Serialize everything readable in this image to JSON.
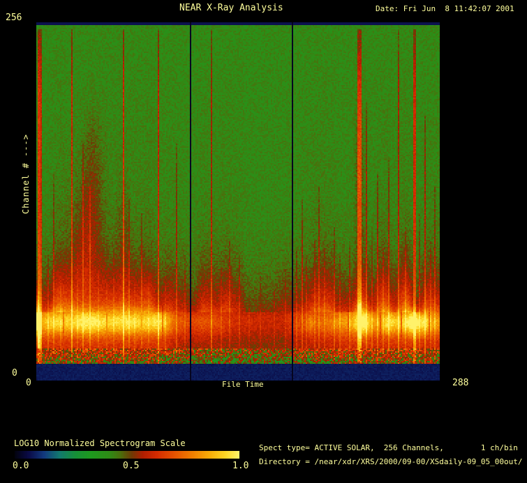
{
  "window": {
    "title": "NEAR X-Ray Analysis",
    "date": "Date: Fri Jun  8 11:42:07 2001"
  },
  "plot": {
    "y_axis": {
      "label": "Channel # --->",
      "top_tick": "256",
      "bottom_tick": "0"
    },
    "x_axis": {
      "label": "File Time",
      "left_tick": "0",
      "right_tick": "288"
    }
  },
  "colorbar": {
    "title": "LOG10 Normalized Spectrogram Scale",
    "ticks": [
      "0.0",
      "0.5",
      "1.0"
    ]
  },
  "info": {
    "line1": "Spect type= ACTIVE SOLAR,  256 Channels,        1 ch/bin",
    "line2": "Directory = /near/xdr/XRS/2000/09-00/XSdaily-09_05_00out/"
  },
  "colors": {
    "text": "#ffff9c",
    "background": "#000000"
  },
  "chart_data": {
    "type": "heatmap",
    "title": "NEAR X-Ray Analysis",
    "xlabel": "File Time",
    "ylabel": "Channel # --->",
    "xlim": [
      0,
      288
    ],
    "ylim": [
      0,
      256
    ],
    "legend": "colorbar bottom-left",
    "colorbar": {
      "label": "LOG10 Normalized Spectrogram Scale",
      "ticks": [
        0.0,
        0.5,
        1.0
      ],
      "range": [
        0.0,
        1.0
      ]
    },
    "spectrogram": {
      "cols": 289,
      "rows": 257,
      "seed": 1337,
      "background_value": 0.42,
      "noise_amp": 0.07,
      "navy_value": 0.07,
      "bottom_navy_rows": 12,
      "top_navy_rows": 2,
      "speckle_rows": [
        12,
        23
      ],
      "profile": [
        [
          23,
          0.63
        ],
        [
          30,
          0.66
        ],
        [
          36,
          0.7
        ],
        [
          42,
          0.72
        ],
        [
          48,
          0.7
        ],
        [
          56,
          0.64
        ],
        [
          68,
          0.57
        ],
        [
          84,
          0.5
        ],
        [
          104,
          0.46
        ],
        [
          134,
          0.44
        ],
        [
          257,
          0.425
        ]
      ],
      "yellow_band": {
        "center": 41,
        "sigma": 9,
        "amp": 0.2
      },
      "activity": [
        [
          0,
          1.0
        ],
        [
          90,
          1.0
        ],
        [
          100,
          0.6
        ],
        [
          110,
          0.45
        ],
        [
          118,
          0.5
        ],
        [
          126,
          0.5
        ],
        [
          140,
          0.38
        ],
        [
          158,
          0.33
        ],
        [
          176,
          0.3
        ],
        [
          184,
          0.5
        ],
        [
          196,
          0.62
        ],
        [
          210,
          0.75
        ],
        [
          222,
          0.9
        ],
        [
          232,
          1.0
        ],
        [
          242,
          0.9
        ],
        [
          252,
          0.98
        ],
        [
          266,
          1.0
        ],
        [
          278,
          0.9
        ],
        [
          288,
          0.85
        ]
      ],
      "gap_columns": [
        110,
        183
      ],
      "cuts": [
        19,
        50,
        75,
        90,
        223,
        246,
        261,
        281
      ],
      "streaks": [
        [
          1,
          2,
          252,
          0.22,
          0.1
        ],
        [
          3,
          1,
          252,
          0.18,
          0.06
        ],
        [
          8,
          1,
          90,
          0.07,
          0
        ],
        [
          12,
          1,
          150,
          0.08,
          0
        ],
        [
          17,
          1,
          70,
          0.06,
          0
        ],
        [
          25,
          1,
          252,
          0.17,
          0
        ],
        [
          29,
          1,
          90,
          0.06,
          0
        ],
        [
          33,
          1,
          170,
          0.1,
          0
        ],
        [
          38,
          1,
          140,
          0.1,
          0
        ],
        [
          44,
          1,
          80,
          0.06,
          0
        ],
        [
          50,
          1,
          70,
          0.07,
          0
        ],
        [
          55,
          1,
          95,
          0.06,
          0
        ],
        [
          62,
          1,
          252,
          0.18,
          0
        ],
        [
          66,
          1,
          130,
          0.08,
          0
        ],
        [
          70,
          1,
          75,
          0.05,
          0
        ],
        [
          75,
          1,
          120,
          0.09,
          0
        ],
        [
          80,
          1,
          70,
          0.06,
          0
        ],
        [
          87,
          1,
          252,
          0.17,
          0
        ],
        [
          92,
          1,
          75,
          0.06,
          0
        ],
        [
          100,
          1,
          170,
          0.1,
          0
        ],
        [
          106,
          1,
          90,
          0.06,
          0
        ],
        [
          125,
          1,
          252,
          0.13,
          0
        ],
        [
          132,
          1,
          80,
          0.06,
          0
        ],
        [
          138,
          1,
          100,
          0.08,
          0
        ],
        [
          145,
          1,
          90,
          0.07,
          0
        ],
        [
          152,
          1,
          70,
          0.05,
          0
        ],
        [
          160,
          1,
          75,
          0.05,
          0
        ],
        [
          170,
          1,
          70,
          0.05,
          0
        ],
        [
          178,
          1,
          80,
          0.05,
          0
        ],
        [
          186,
          1,
          95,
          0.07,
          0
        ],
        [
          190,
          1,
          130,
          0.1,
          0
        ],
        [
          193,
          1,
          90,
          0.07,
          0
        ],
        [
          199,
          1,
          100,
          0.08,
          0
        ],
        [
          202,
          1,
          140,
          0.09,
          0
        ],
        [
          206,
          1,
          95,
          0.07,
          0
        ],
        [
          213,
          1,
          110,
          0.09,
          0
        ],
        [
          217,
          1,
          90,
          0.07,
          0
        ],
        [
          224,
          1,
          100,
          0.08,
          0
        ],
        [
          230,
          3,
          252,
          0.2,
          0.06
        ],
        [
          236,
          1,
          200,
          0.11,
          0
        ],
        [
          240,
          1,
          110,
          0.08,
          0
        ],
        [
          244,
          1,
          150,
          0.1,
          0
        ],
        [
          248,
          1,
          95,
          0.07,
          0
        ],
        [
          252,
          1,
          160,
          0.1,
          0
        ],
        [
          259,
          1,
          252,
          0.13,
          0
        ],
        [
          264,
          1,
          110,
          0.08,
          0
        ],
        [
          270,
          2,
          252,
          0.19,
          0
        ],
        [
          274,
          1,
          120,
          0.08,
          0
        ],
        [
          278,
          1,
          190,
          0.12,
          0
        ],
        [
          282,
          1,
          100,
          0.07,
          0
        ],
        [
          285,
          1,
          140,
          0.09,
          0
        ]
      ],
      "blobs": [
        [
          36,
          95,
          10,
          48,
          0.1
        ],
        [
          40,
          150,
          7,
          40,
          0.06
        ],
        [
          62,
          100,
          4,
          50,
          0.05
        ],
        [
          231,
          150,
          3,
          50,
          0.07
        ],
        [
          0,
          44,
          1.6,
          16,
          0.24
        ],
        [
          196,
          40,
          2,
          8,
          0.1
        ],
        [
          233,
          42,
          5,
          10,
          0.2
        ],
        [
          252,
          41,
          4,
          8,
          0.12
        ],
        [
          270,
          41,
          4,
          9,
          0.17
        ],
        [
          278,
          40,
          3,
          8,
          0.11
        ],
        [
          14,
          42,
          9,
          10,
          0.07
        ],
        [
          36,
          42,
          10,
          10,
          0.08
        ],
        [
          62,
          43,
          10,
          10,
          0.07
        ],
        [
          85,
          42,
          8,
          9,
          0.06
        ]
      ],
      "colormap": [
        [
          0.0,
          "#02020e"
        ],
        [
          0.06,
          "#0a0a46"
        ],
        [
          0.13,
          "#123a7e"
        ],
        [
          0.2,
          "#127a6e"
        ],
        [
          0.27,
          "#169038"
        ],
        [
          0.34,
          "#1e9a1e"
        ],
        [
          0.42,
          "#2e8c16"
        ],
        [
          0.47,
          "#4a700c"
        ],
        [
          0.52,
          "#6e3a04"
        ],
        [
          0.57,
          "#b01e00"
        ],
        [
          0.63,
          "#d42a00"
        ],
        [
          0.71,
          "#e65200"
        ],
        [
          0.79,
          "#f07e00"
        ],
        [
          0.87,
          "#f8ae08"
        ],
        [
          0.94,
          "#fdd826"
        ],
        [
          1.0,
          "#fff26a"
        ]
      ]
    }
  }
}
